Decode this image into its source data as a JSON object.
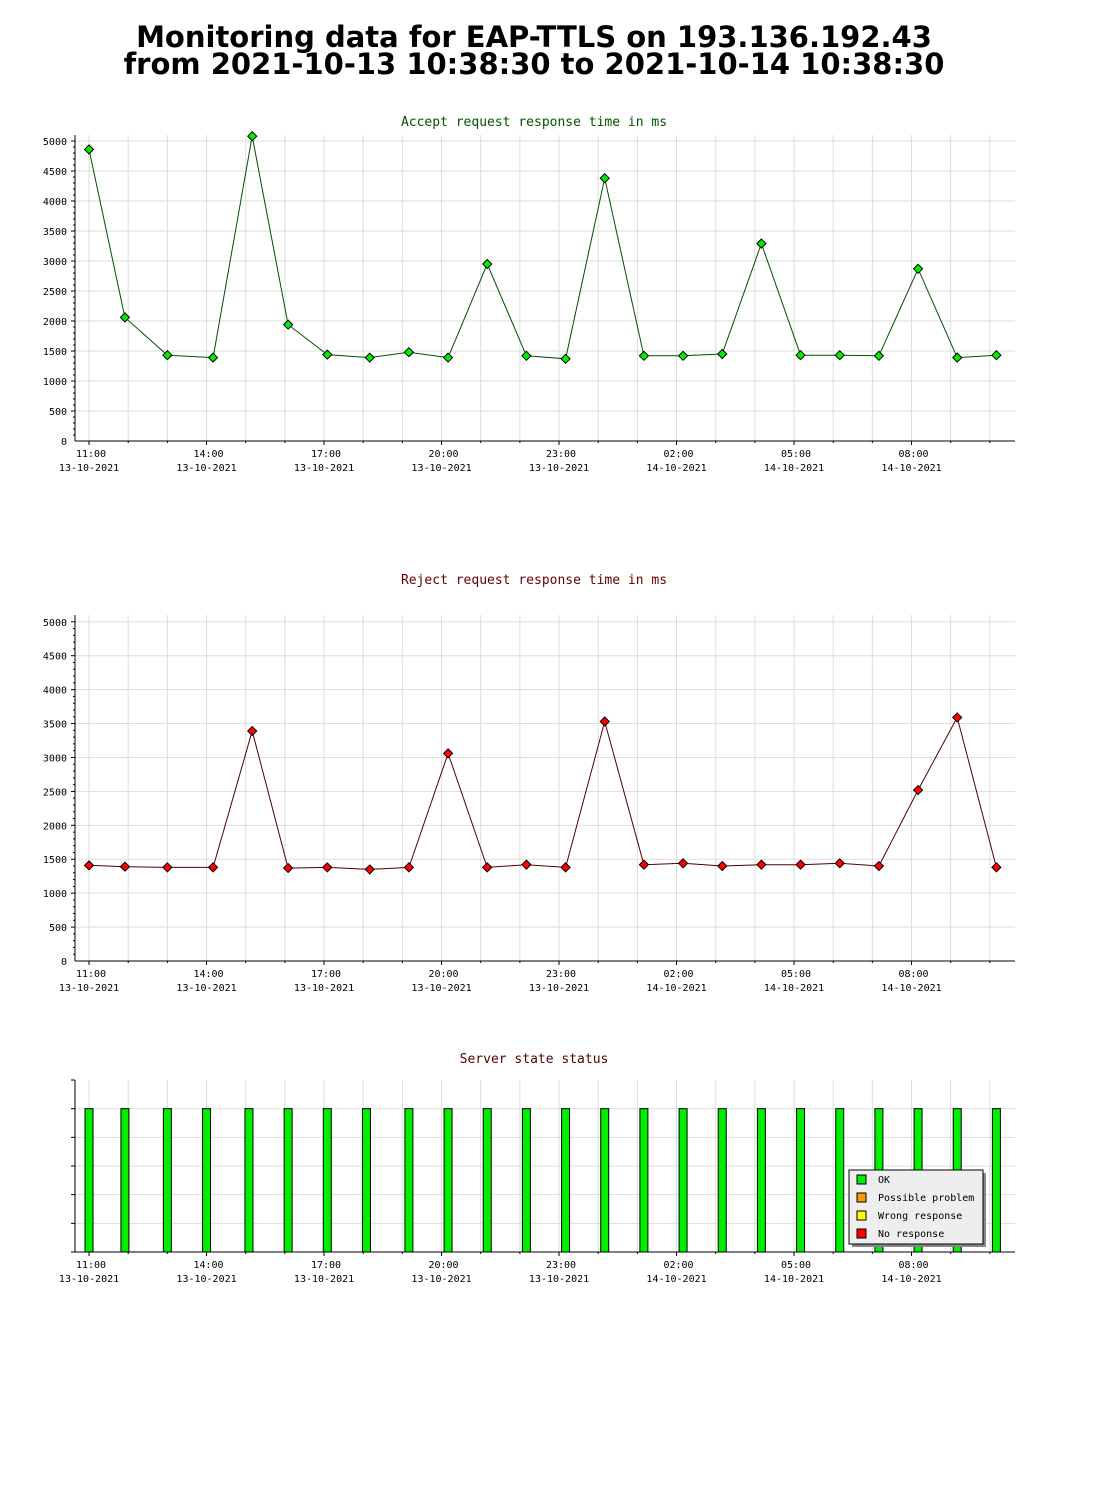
{
  "page_title": {
    "line1": "Monitoring data for EAP-TTLS on 193.136.192.43",
    "line2": "from 2021-10-13 10:38:30 to 2021-10-14 10:38:30"
  },
  "colors": {
    "accept_line": "#005000",
    "accept_marker": "#00ee00",
    "reject_line": "#500000",
    "reject_marker": "#ff0000",
    "accept_title": "#005500",
    "reject_title": "#660000",
    "status_title": "#550000",
    "grid": "#dddddd",
    "ok": "#00ee00",
    "possible_problem": "#ff9900",
    "wrong_response": "#ffff00",
    "no_response": "#ff0000"
  },
  "chart_data": [
    {
      "type": "line",
      "title": "Accept request response time in ms",
      "xlabel": "",
      "ylabel": "",
      "ylim": [
        0,
        5100
      ],
      "yticks": [
        0,
        500,
        1000,
        1500,
        2000,
        2500,
        3000,
        3500,
        4000,
        4500,
        5000
      ],
      "x_tick_labels": [
        {
          "time": "11:00",
          "date": "13-10-2021"
        },
        {
          "time": "14:00",
          "date": "13-10-2021"
        },
        {
          "time": "17:00",
          "date": "13-10-2021"
        },
        {
          "time": "20:00",
          "date": "13-10-2021"
        },
        {
          "time": "23:00",
          "date": "13-10-2021"
        },
        {
          "time": "02:00",
          "date": "14-10-2021"
        },
        {
          "time": "05:00",
          "date": "14-10-2021"
        },
        {
          "time": "08:00",
          "date": "14-10-2021"
        }
      ],
      "grid": true,
      "x": [
        "2021-10-13 11:00",
        "2021-10-13 11:55",
        "2021-10-13 13:00",
        "2021-10-13 14:10",
        "2021-10-13 15:10",
        "2021-10-13 16:05",
        "2021-10-13 17:05",
        "2021-10-13 18:10",
        "2021-10-13 19:10",
        "2021-10-13 20:10",
        "2021-10-13 21:10",
        "2021-10-13 22:10",
        "2021-10-13 23:10",
        "2021-10-14 00:10",
        "2021-10-14 01:10",
        "2021-10-14 02:10",
        "2021-10-14 03:10",
        "2021-10-14 04:10",
        "2021-10-14 05:10",
        "2021-10-14 06:10",
        "2021-10-14 07:10",
        "2021-10-14 08:10",
        "2021-10-14 09:10",
        "2021-10-14 10:10"
      ],
      "series": [
        {
          "values": [
            4860,
            2060,
            1430,
            1390,
            5080,
            1940,
            1440,
            1390,
            1480,
            1390,
            2950,
            1420,
            1370,
            4380,
            1420,
            1420,
            1450,
            3290,
            1430,
            1430,
            1420,
            2870,
            1390,
            1430
          ]
        }
      ]
    },
    {
      "type": "line",
      "title": "Reject request response time in ms",
      "xlabel": "",
      "ylabel": "",
      "ylim": [
        0,
        5100
      ],
      "yticks": [
        0,
        500,
        1000,
        1500,
        2000,
        2500,
        3000,
        3500,
        4000,
        4500,
        5000
      ],
      "x_tick_labels": [
        {
          "time": "11:00",
          "date": "13-10-2021"
        },
        {
          "time": "14:00",
          "date": "13-10-2021"
        },
        {
          "time": "17:00",
          "date": "13-10-2021"
        },
        {
          "time": "20:00",
          "date": "13-10-2021"
        },
        {
          "time": "23:00",
          "date": "13-10-2021"
        },
        {
          "time": "02:00",
          "date": "14-10-2021"
        },
        {
          "time": "05:00",
          "date": "14-10-2021"
        },
        {
          "time": "08:00",
          "date": "14-10-2021"
        }
      ],
      "grid": true,
      "x": [
        "2021-10-13 11:00",
        "2021-10-13 11:55",
        "2021-10-13 13:00",
        "2021-10-13 14:10",
        "2021-10-13 15:10",
        "2021-10-13 16:05",
        "2021-10-13 17:05",
        "2021-10-13 18:10",
        "2021-10-13 19:10",
        "2021-10-13 20:10",
        "2021-10-13 21:10",
        "2021-10-13 22:10",
        "2021-10-13 23:10",
        "2021-10-14 00:10",
        "2021-10-14 01:10",
        "2021-10-14 02:10",
        "2021-10-14 03:10",
        "2021-10-14 04:10",
        "2021-10-14 05:10",
        "2021-10-14 06:10",
        "2021-10-14 07:10",
        "2021-10-14 08:10",
        "2021-10-14 09:10",
        "2021-10-14 10:10"
      ],
      "series": [
        {
          "values": [
            1410,
            1390,
            1380,
            1380,
            3390,
            1370,
            1380,
            1350,
            1380,
            3060,
            1380,
            1420,
            1380,
            3530,
            1420,
            1440,
            1400,
            1420,
            1420,
            1440,
            1400,
            2520,
            3590,
            1380
          ]
        }
      ]
    },
    {
      "type": "bar",
      "title": "Server state status",
      "xlabel": "",
      "ylabel": "",
      "x_tick_labels": [
        {
          "time": "11:00",
          "date": "13-10-2021"
        },
        {
          "time": "14:00",
          "date": "13-10-2021"
        },
        {
          "time": "17:00",
          "date": "13-10-2021"
        },
        {
          "time": "20:00",
          "date": "13-10-2021"
        },
        {
          "time": "23:00",
          "date": "13-10-2021"
        },
        {
          "time": "02:00",
          "date": "14-10-2021"
        },
        {
          "time": "05:00",
          "date": "14-10-2021"
        },
        {
          "time": "08:00",
          "date": "14-10-2021"
        }
      ],
      "grid": true,
      "x": [
        "2021-10-13 11:00",
        "2021-10-13 11:55",
        "2021-10-13 13:00",
        "2021-10-13 14:00",
        "2021-10-13 15:05",
        "2021-10-13 16:05",
        "2021-10-13 17:05",
        "2021-10-13 18:05",
        "2021-10-13 19:10",
        "2021-10-13 20:10",
        "2021-10-13 21:10",
        "2021-10-13 22:10",
        "2021-10-13 23:10",
        "2021-10-14 00:10",
        "2021-10-14 01:10",
        "2021-10-14 02:10",
        "2021-10-14 03:10",
        "2021-10-14 04:10",
        "2021-10-14 05:10",
        "2021-10-14 06:10",
        "2021-10-14 07:10",
        "2021-10-14 08:10",
        "2021-10-14 09:10",
        "2021-10-14 10:10"
      ],
      "states": [
        "OK",
        "OK",
        "OK",
        "OK",
        "OK",
        "OK",
        "OK",
        "OK",
        "OK",
        "OK",
        "OK",
        "OK",
        "OK",
        "OK",
        "OK",
        "OK",
        "OK",
        "OK",
        "OK",
        "OK",
        "OK",
        "OK",
        "OK",
        "OK"
      ],
      "legend": {
        "placement": "bottom-right",
        "entries": [
          {
            "label": "OK",
            "color": "#00ee00"
          },
          {
            "label": "Possible problem",
            "color": "#ff9900"
          },
          {
            "label": "Wrong response",
            "color": "#ffff00"
          },
          {
            "label": "No response",
            "color": "#ff0000"
          }
        ]
      }
    }
  ]
}
